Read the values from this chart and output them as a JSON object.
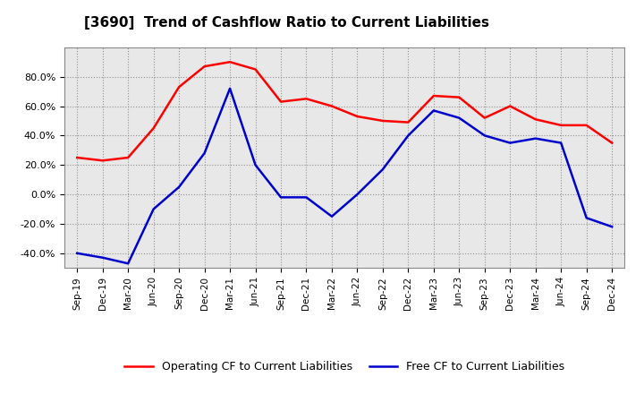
{
  "title": "[3690]  Trend of Cashflow Ratio to Current Liabilities",
  "x_labels": [
    "Sep-19",
    "Dec-19",
    "Mar-20",
    "Jun-20",
    "Sep-20",
    "Dec-20",
    "Mar-21",
    "Jun-21",
    "Sep-21",
    "Dec-21",
    "Mar-22",
    "Jun-22",
    "Sep-22",
    "Dec-22",
    "Mar-23",
    "Jun-23",
    "Sep-23",
    "Dec-23",
    "Mar-24",
    "Jun-24",
    "Sep-24",
    "Dec-24"
  ],
  "operating_cf": [
    0.25,
    0.23,
    0.25,
    0.45,
    0.73,
    0.87,
    0.9,
    0.85,
    0.63,
    0.65,
    0.6,
    0.53,
    0.5,
    0.49,
    0.67,
    0.66,
    0.52,
    0.6,
    0.51,
    0.47,
    0.47,
    0.35
  ],
  "free_cf": [
    -0.4,
    -0.43,
    -0.47,
    -0.1,
    0.05,
    0.28,
    0.72,
    0.2,
    -0.02,
    -0.02,
    -0.15,
    0.0,
    0.17,
    0.4,
    0.57,
    0.52,
    0.4,
    0.35,
    0.38,
    0.35,
    -0.16,
    -0.22
  ],
  "operating_color": "#FF0000",
  "free_color": "#0000CC",
  "ylim": [
    -0.5,
    1.0
  ],
  "ytick_values": [
    -0.4,
    -0.2,
    0.0,
    0.2,
    0.4,
    0.6,
    0.8
  ],
  "ytick_labels": [
    "-40.0%",
    "-20.0%",
    "0.0%",
    "20.0%",
    "40.0%",
    "60.0%",
    "80.0%"
  ],
  "legend_labels": [
    "Operating CF to Current Liabilities",
    "Free CF to Current Liabilities"
  ],
  "bg_color": "#FFFFFF",
  "plot_bg_color": "#E8E8E8",
  "grid_color": "#AAAAAA"
}
